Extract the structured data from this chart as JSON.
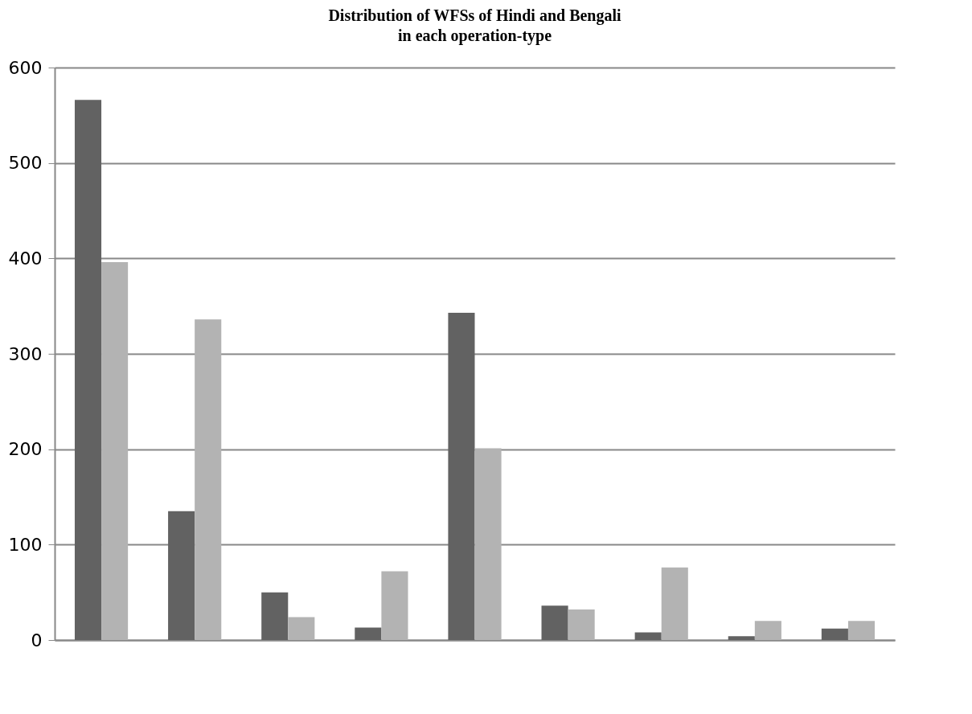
{
  "chart_data": {
    "type": "bar",
    "title": "Distribution of WFSs of Hindi and Bengali\nin each operation-type",
    "categories": [
      null,
      null,
      null,
      null,
      null,
      null,
      null,
      null,
      null
    ],
    "series": [
      {
        "color": "#626262",
        "values": [
          566,
          135,
          50,
          13,
          343,
          36,
          8,
          4,
          12
        ]
      },
      {
        "color": "#b3b3b3",
        "values": [
          396,
          336,
          24,
          72,
          201,
          32,
          76,
          20,
          20
        ]
      }
    ],
    "ylim": [
      0,
      600
    ],
    "yticks": [
      0,
      100,
      200,
      300,
      400,
      500,
      600
    ],
    "grid": "y",
    "tick_labels": "y",
    "legend": false
  }
}
